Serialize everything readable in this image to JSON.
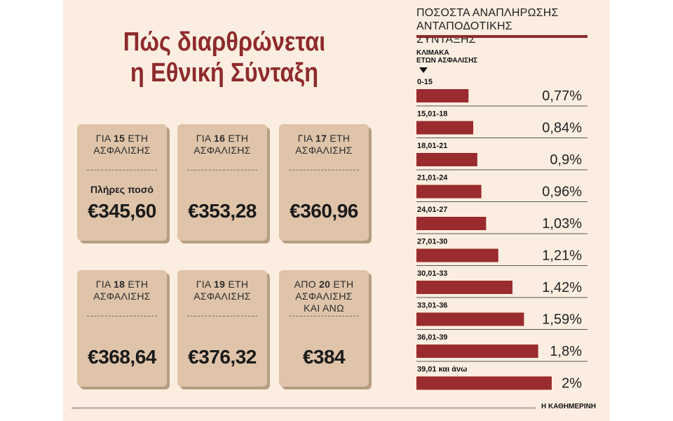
{
  "title": {
    "line1": "Πώς διαρθρώνεται",
    "line2": "η Εθνική Σύνταξη"
  },
  "cards": [
    {
      "pre": "ΓΙΑ ",
      "num": "15",
      "post": " ΕΤΗ",
      "line2": "ΑΣΦΑΛΙΣΗΣ",
      "line3": "",
      "full": "Πλήρες ποσό",
      "amount": "€345,60"
    },
    {
      "pre": "ΓΙΑ ",
      "num": "16",
      "post": " ΕΤΗ",
      "line2": "ΑΣΦΑΛΙΣΗΣ",
      "line3": "",
      "full": "",
      "amount": "€353,28"
    },
    {
      "pre": "ΓΙΑ ",
      "num": "17",
      "post": " ΕΤΗ",
      "line2": "ΑΣΦΑΛΙΣΗΣ",
      "line3": "",
      "full": "",
      "amount": "€360,96"
    },
    {
      "pre": "ΓΙΑ ",
      "num": "18",
      "post": " ΕΤΗ",
      "line2": "ΑΣΦΑΛΙΣΗΣ",
      "line3": "",
      "full": "",
      "amount": "€368,64"
    },
    {
      "pre": "ΓΙΑ ",
      "num": "19",
      "post": " ΕΤΗ",
      "line2": "ΑΣΦΑΛΙΣΗΣ",
      "line3": "",
      "full": "",
      "amount": "€376,32"
    },
    {
      "pre": "ΑΠΟ ",
      "num": "20",
      "post": " ΕΤΗ",
      "line2": "ΑΣΦΑΛΙΣΗΣ",
      "line3": "ΚΑΙ ΑΝΩ",
      "full": "",
      "amount": "€384"
    }
  ],
  "chart_data": {
    "type": "bar",
    "orientation": "horizontal",
    "title": "ΠΟΣΟΣΤΑ ΑΝΑΠΛΗΡΩΣΗΣ ΑΝΤΑΠΟΔΟΤΙΚΗΣ ΣΥΝΤΑΞΗΣ",
    "title_line1": "ΠΟΣΟΣΤΑ ΑΝΑΠΛΗΡΩΣΗΣ",
    "title_line2": "ΑΝΤΑΠΟΔΟΤΙΚΗΣ ΣΥΝΤΑΞΗΣ",
    "category_axis_label_line1": "ΚΛΙΜΑΚΑ",
    "category_axis_label_line2": "ΕΤΩΝ ΑΣΦΑΛΙΣΗΣ",
    "categories": [
      "0-15",
      "15,01-18",
      "18,01-21",
      "21,01-24",
      "24,01-27",
      "27,01-30",
      "30,01-33",
      "33,01-36",
      "36,01-39",
      "39,01 και άνω"
    ],
    "values": [
      0.77,
      0.84,
      0.9,
      0.96,
      1.03,
      1.21,
      1.42,
      1.59,
      1.8,
      2
    ],
    "value_labels": [
      "0,77%",
      "0,84%",
      "0,9%",
      "0,96%",
      "1,03%",
      "1,21%",
      "1,42%",
      "1,59%",
      "1,8%",
      "2%"
    ],
    "unit": "%",
    "bar_color": "#9a2b2e",
    "grid": false,
    "legend": "none"
  },
  "source": "Η ΚΑΘΗΜΕΡΙΝΗ",
  "colors": {
    "background": "#fbeee0",
    "card": "#dfc4aa",
    "accent": "#8e2a2c"
  }
}
